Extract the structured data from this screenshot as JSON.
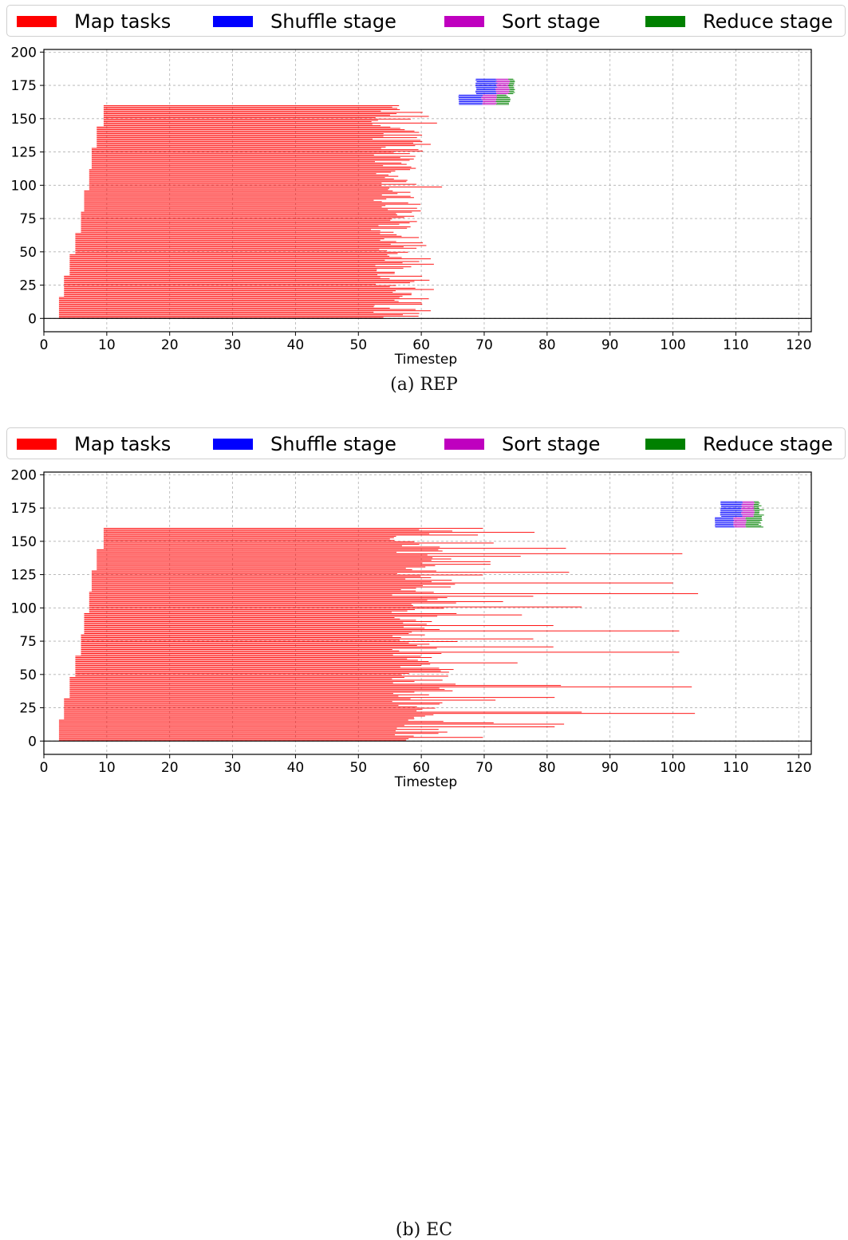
{
  "legend": {
    "items": [
      {
        "label": "Map tasks",
        "color": "#ff0000"
      },
      {
        "label": "Shuffle stage",
        "color": "#0000ff"
      },
      {
        "label": "Sort stage",
        "color": "#bf00bf"
      },
      {
        "label": "Reduce stage",
        "color": "#008000"
      }
    ]
  },
  "captions": {
    "a": "(a) REP",
    "b": "(b) EC"
  },
  "chart_data": [
    {
      "type": "bar",
      "orientation": "horizontal",
      "title": "",
      "xlabel": "Timestep",
      "ylabel": "",
      "xlim": [
        0,
        122
      ],
      "ylim": [
        -10,
        202
      ],
      "xticks": [
        "0",
        "10",
        "20",
        "30",
        "40",
        "50",
        "60",
        "70",
        "80",
        "90",
        "100",
        "110",
        "120"
      ],
      "yticks": [
        "0",
        "25",
        "50",
        "75",
        "100",
        "125",
        "150",
        "175",
        "200"
      ],
      "grid": true,
      "legend_position": "top",
      "map_tasks": {
        "count": 160,
        "start_steps": [
          [
            0,
            2.4
          ],
          [
            16,
            3.2
          ],
          [
            32,
            4.1
          ],
          [
            48,
            5.0
          ],
          [
            64,
            5.9
          ],
          [
            80,
            6.4
          ],
          [
            96,
            7.2
          ],
          [
            112,
            7.6
          ],
          [
            128,
            8.4
          ],
          [
            144,
            9.5
          ],
          [
            160,
            9.5
          ]
        ],
        "end_range": [
          52,
          63.5
        ],
        "long_tails": [
          [
            5,
            61.5
          ],
          [
            14,
            61.2
          ],
          [
            21,
            62
          ],
          [
            28,
            61.3
          ],
          [
            40,
            62
          ],
          [
            44,
            61.5
          ],
          [
            54,
            60.8
          ],
          [
            98,
            63.3
          ],
          [
            130,
            61.5
          ],
          [
            146,
            62.5
          ],
          [
            151,
            61.2
          ]
        ]
      },
      "reduce_tasks": {
        "count": 20,
        "ids_range": [
          160,
          180
        ],
        "shuffle": {
          "start": [
            66,
            68.8
          ],
          "end": [
            69.5,
            71.8
          ]
        },
        "sort": {
          "end": [
            71.8,
            73.8
          ]
        },
        "reduce": {
          "end": [
            73.5,
            74.5
          ]
        }
      }
    },
    {
      "type": "bar",
      "orientation": "horizontal",
      "title": "",
      "xlabel": "Timestep",
      "ylabel": "",
      "xlim": [
        0,
        122
      ],
      "ylim": [
        -10,
        202
      ],
      "xticks": [
        "0",
        "10",
        "20",
        "30",
        "40",
        "50",
        "60",
        "70",
        "80",
        "90",
        "100",
        "110",
        "120"
      ],
      "yticks": [
        "0",
        "25",
        "50",
        "75",
        "100",
        "125",
        "150",
        "175",
        "200"
      ],
      "grid": true,
      "legend_position": "top",
      "map_tasks": {
        "count": 160,
        "start_steps": [
          [
            0,
            2.4
          ],
          [
            16,
            3.2
          ],
          [
            32,
            4.1
          ],
          [
            48,
            5.0
          ],
          [
            64,
            5.9
          ],
          [
            80,
            6.4
          ],
          [
            96,
            7.2
          ],
          [
            112,
            7.6
          ],
          [
            128,
            8.4
          ],
          [
            144,
            9.5
          ],
          [
            160,
            9.5
          ]
        ],
        "end_range": [
          55,
          70
        ],
        "long_tails": [
          [
            2,
            69.8
          ],
          [
            10,
            81.2
          ],
          [
            12,
            82.7
          ],
          [
            13,
            71.5
          ],
          [
            20,
            103.5
          ],
          [
            21,
            85.5
          ],
          [
            30,
            71.8
          ],
          [
            32,
            81.2
          ],
          [
            40,
            103
          ],
          [
            41,
            82.2
          ],
          [
            58,
            75.3
          ],
          [
            66,
            101
          ],
          [
            70,
            81
          ],
          [
            76,
            77.8
          ],
          [
            82,
            101
          ],
          [
            86,
            81
          ],
          [
            94,
            76
          ],
          [
            100,
            85.5
          ],
          [
            104,
            73
          ],
          [
            108,
            77.8
          ],
          [
            110,
            104
          ],
          [
            118,
            100
          ],
          [
            124,
            69.8
          ],
          [
            126,
            83.5
          ],
          [
            132,
            71
          ],
          [
            134,
            71
          ],
          [
            138,
            75.8
          ],
          [
            140,
            101.5
          ],
          [
            144,
            83
          ],
          [
            148,
            71.5
          ],
          [
            154,
            69
          ],
          [
            156,
            78
          ],
          [
            159,
            69.8
          ]
        ]
      },
      "reduce_tasks": {
        "count": 20,
        "ids_range": [
          160,
          180
        ],
        "shuffle": {
          "start": [
            106.8,
            107.7
          ],
          "end": [
            109.5,
            110.8
          ]
        },
        "sort": {
          "end": [
            111.5,
            112.8
          ]
        },
        "reduce": {
          "end": [
            113.2,
            114.5
          ]
        }
      }
    }
  ]
}
